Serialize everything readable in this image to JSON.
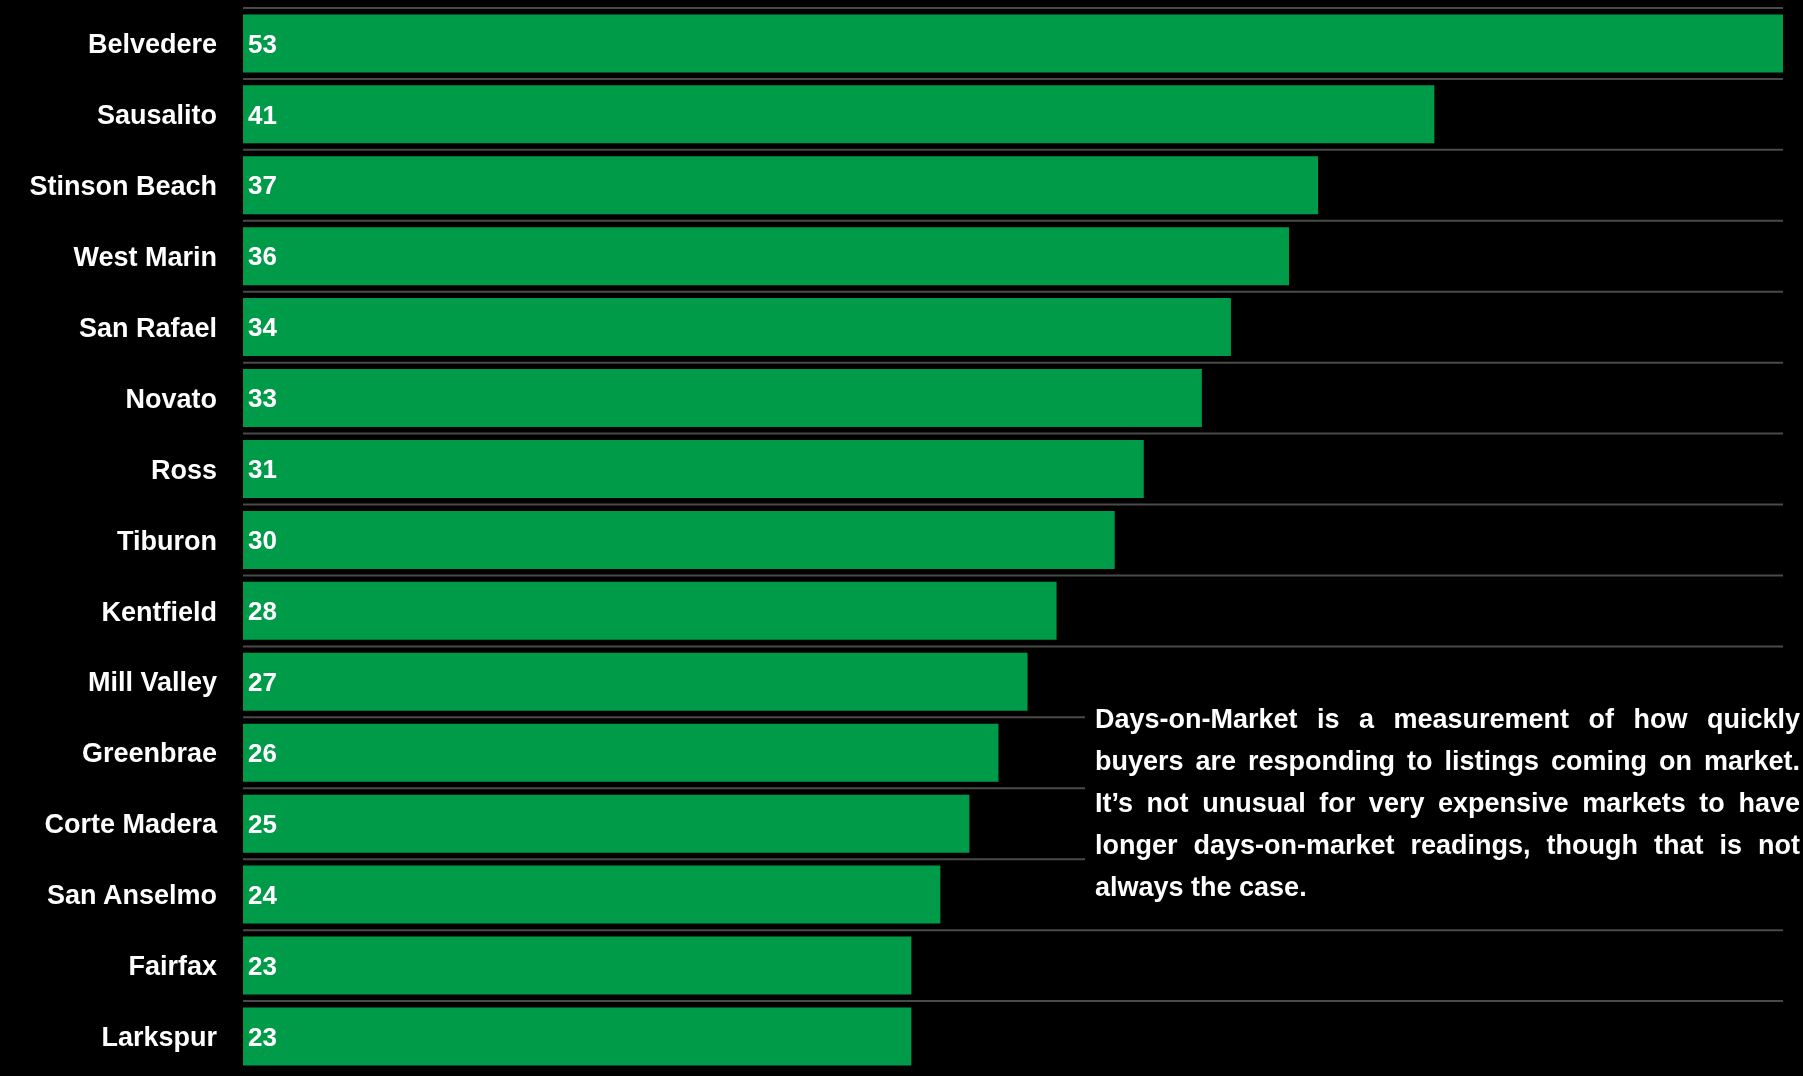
{
  "chart_data": {
    "type": "bar",
    "orientation": "horizontal",
    "categories": [
      "Belvedere",
      "Sausalito",
      "Stinson Beach",
      "West Marin",
      "San Rafael",
      "Novato",
      "Ross",
      "Tiburon",
      "Kentfield",
      "Mill Valley",
      "Greenbrae",
      "Corte Madera",
      "San Anselmo",
      "Fairfax",
      "Larkspur"
    ],
    "values": [
      53,
      41,
      37,
      36,
      34,
      33,
      31,
      30,
      28,
      27,
      26,
      25,
      24,
      23,
      23
    ],
    "color": "#009b48",
    "data_labels": true,
    "grid": "y",
    "tick_labels": "y",
    "annotations": [
      "Days-on-Market is a measurement of how quickly buyers are responding to listings coming on market. It’s not unusual for very expensive markets to have longer days-on-market readings, though that is not always the case."
    ]
  }
}
